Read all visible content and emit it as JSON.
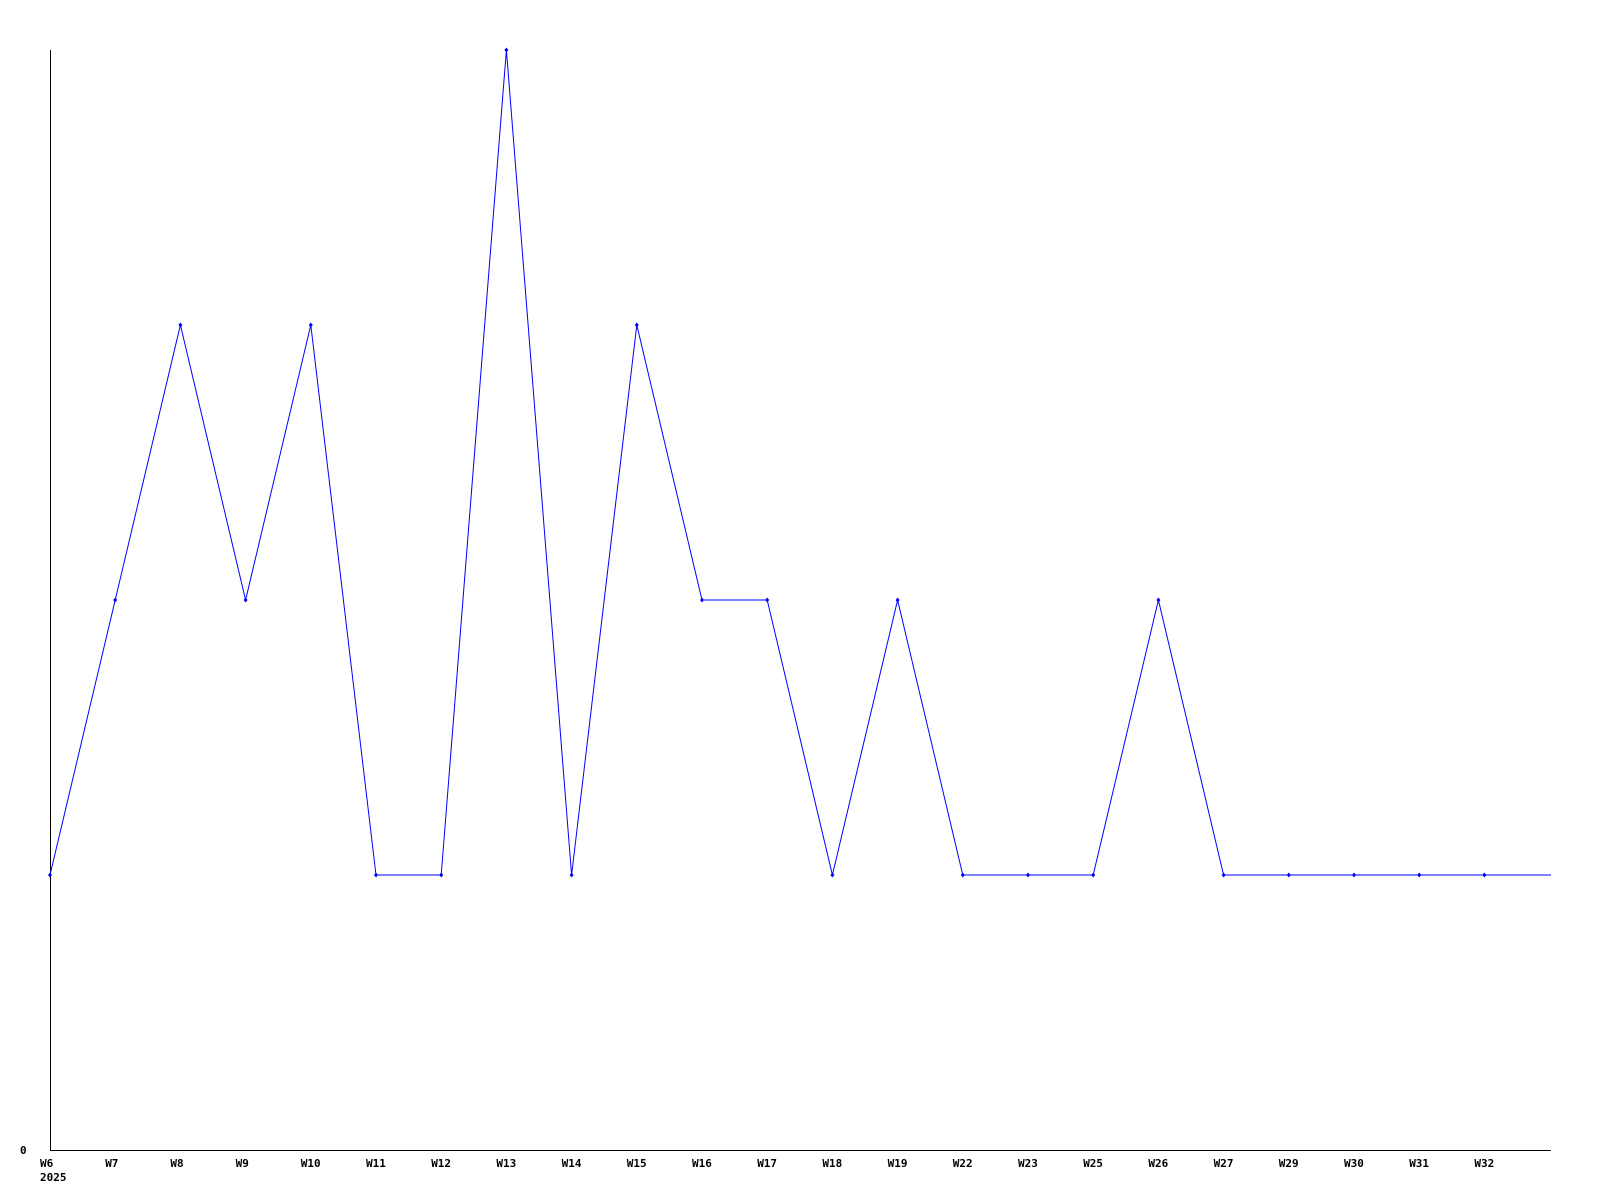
{
  "chart_data": {
    "type": "line",
    "title": "",
    "xlabel": "",
    "ylabel": "",
    "categories": [
      "W6",
      "W7",
      "W8",
      "W9",
      "W10",
      "W11",
      "W12",
      "W13",
      "W14",
      "W15",
      "W16",
      "W17",
      "W18",
      "W19",
      "W22",
      "W23",
      "W25",
      "W26",
      "W27",
      "W29",
      "W30",
      "W31",
      "W32"
    ],
    "x_sublabel": "2025",
    "series": [
      {
        "values": [
          1,
          2,
          3,
          2,
          3,
          1,
          1,
          4,
          1,
          3,
          2,
          2,
          1,
          2,
          1,
          1,
          1,
          2,
          1,
          1,
          1,
          1,
          1
        ],
        "color": "#0000ff"
      }
    ],
    "trailing_value": 1,
    "ylim": [
      0,
      4
    ],
    "y_tick_labels": [
      "0"
    ],
    "grid": false,
    "legend": "none",
    "marker": "small-diamond"
  }
}
